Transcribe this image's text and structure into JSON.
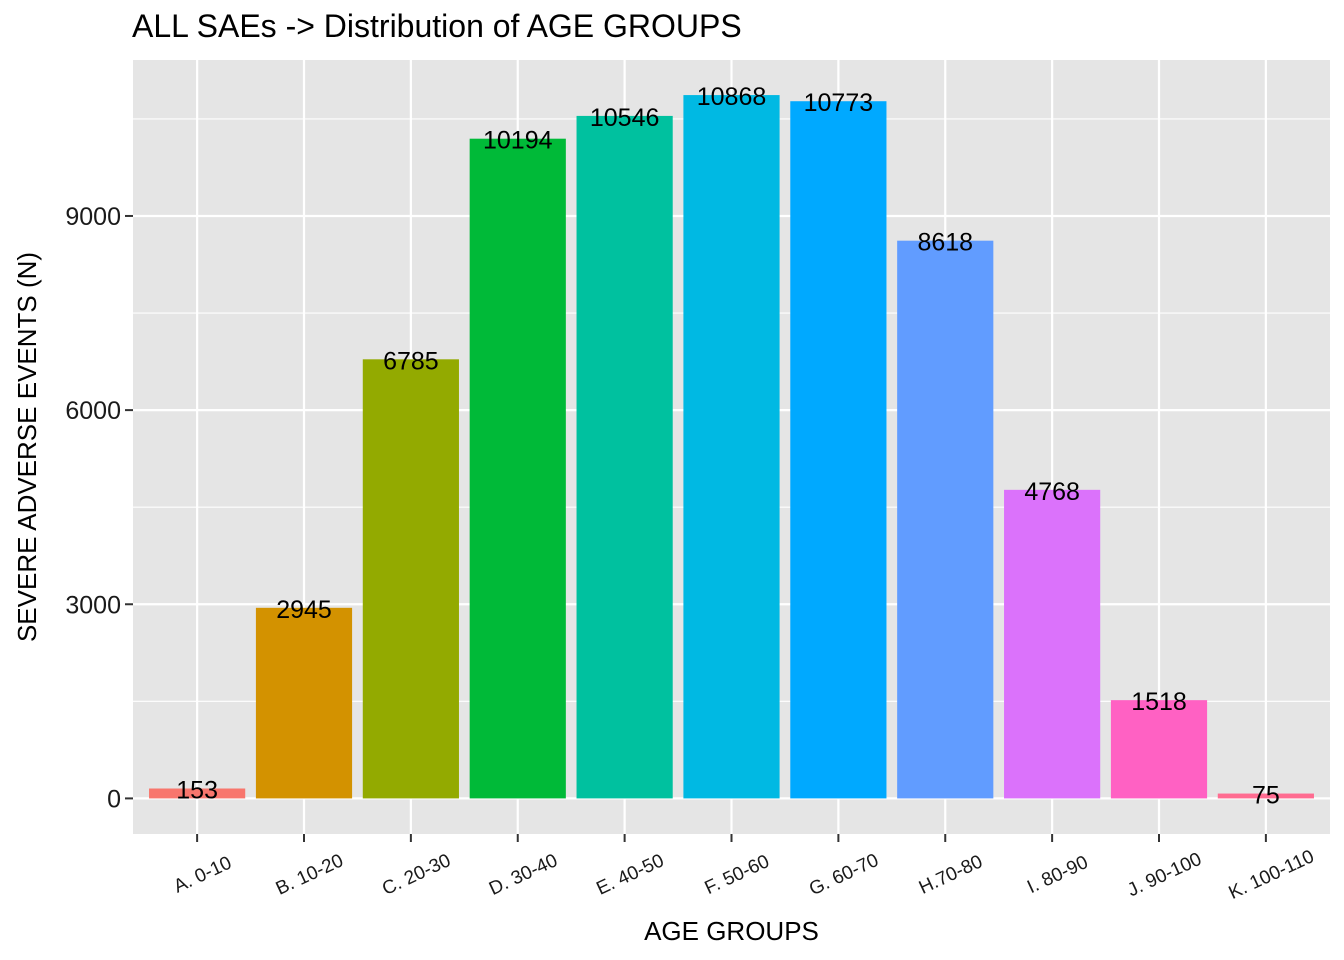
{
  "chart_data": {
    "type": "bar",
    "title": "ALL SAEs -> Distribution of AGE GROUPS",
    "xlabel": "AGE GROUPS",
    "ylabel": "SEVERE ADVERSE EVENTS (N)",
    "categories": [
      "A. 0-10",
      "B. 10-20",
      "C. 20-30",
      "D. 30-40",
      "E. 40-50",
      "F. 50-60",
      "G. 60-70",
      "H.70-80",
      "I. 80-90",
      "J. 90-100",
      "K. 100-110"
    ],
    "values": [
      153,
      2945,
      6785,
      10194,
      10546,
      10868,
      10773,
      8618,
      4768,
      1518,
      75
    ],
    "colors": [
      "#F8766D",
      "#D39200",
      "#93AA00",
      "#00BA38",
      "#00C19F",
      "#00B9E3",
      "#00A9FF",
      "#619CFF",
      "#DB72FB",
      "#FF61C3",
      "#FF6C91"
    ],
    "yticks": [
      0,
      3000,
      6000,
      9000
    ],
    "ylim": [
      -550,
      11410
    ],
    "grid": true,
    "legend": "none",
    "panel_background": "#E5E5E5",
    "grid_color": "#FFFFFF"
  }
}
